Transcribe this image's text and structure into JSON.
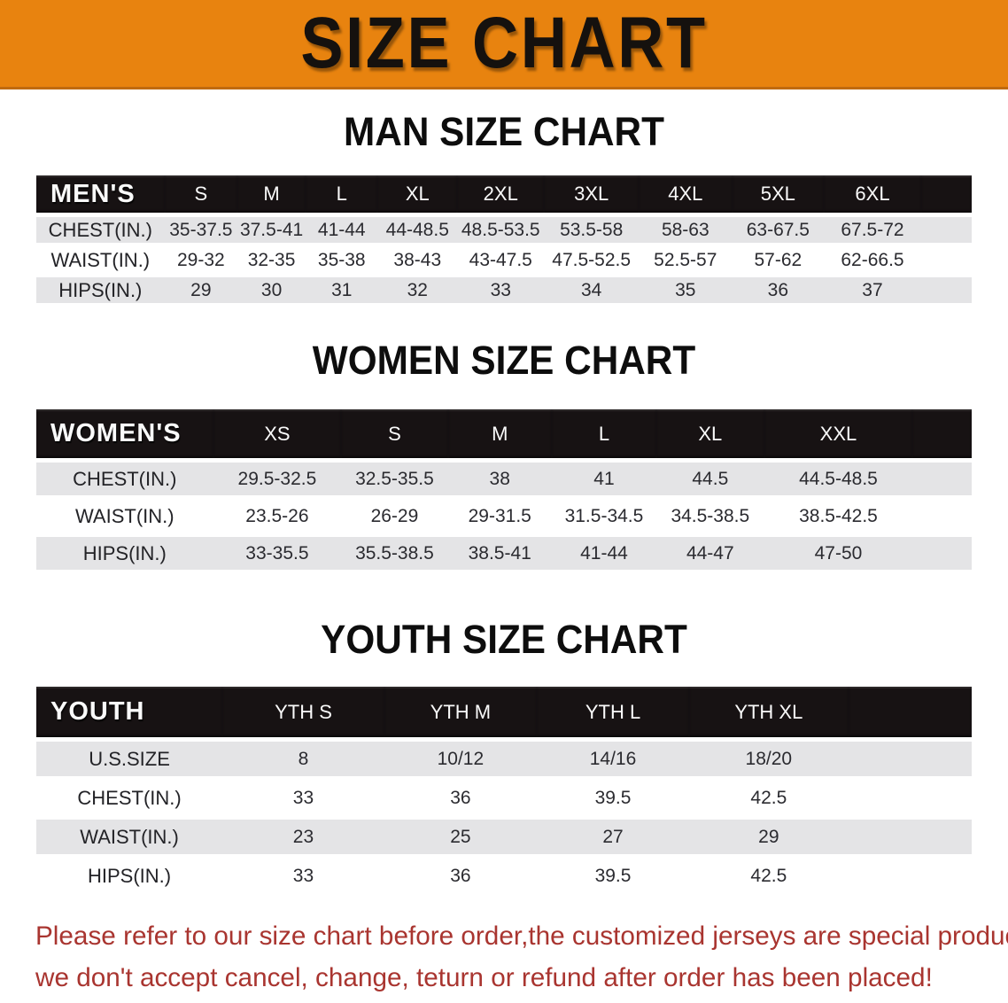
{
  "banner": {
    "title": "SIZE CHART"
  },
  "sections": [
    {
      "id": "men",
      "heading": "MAN SIZE CHART",
      "table": {
        "corner_label": "MEN'S",
        "columns": [
          "S",
          "M",
          "L",
          "XL",
          "2XL",
          "3XL",
          "4XL",
          "5XL",
          "6XL"
        ],
        "rows": [
          {
            "label": "CHEST(IN.)",
            "values": [
              "35-37.5",
              "37.5-41",
              "41-44",
              "44-48.5",
              "48.5-53.5",
              "53.5-58",
              "58-63",
              "63-67.5",
              "67.5-72"
            ]
          },
          {
            "label": "WAIST(IN.)",
            "values": [
              "29-32",
              "32-35",
              "35-38",
              "38-43",
              "43-47.5",
              "47.5-52.5",
              "52.5-57",
              "57-62",
              "62-66.5"
            ]
          },
          {
            "label": "HIPS(IN.)",
            "values": [
              "29",
              "30",
              "31",
              "32",
              "33",
              "34",
              "35",
              "36",
              "37"
            ]
          }
        ]
      }
    },
    {
      "id": "women",
      "heading": "WOMEN SIZE CHART",
      "table": {
        "corner_label": "WOMEN'S",
        "columns": [
          "XS",
          "S",
          "M",
          "L",
          "XL",
          "XXL"
        ],
        "rows": [
          {
            "label": "CHEST(IN.)",
            "values": [
              "29.5-32.5",
              "32.5-35.5",
              "38",
              "41",
              "44.5",
              "44.5-48.5"
            ]
          },
          {
            "label": "WAIST(IN.)",
            "values": [
              "23.5-26",
              "26-29",
              "29-31.5",
              "31.5-34.5",
              "34.5-38.5",
              "38.5-42.5"
            ]
          },
          {
            "label": "HIPS(IN.)",
            "values": [
              "33-35.5",
              "35.5-38.5",
              "38.5-41",
              "41-44",
              "44-47",
              "47-50"
            ]
          }
        ]
      }
    },
    {
      "id": "youth",
      "heading": "YOUTH SIZE CHART",
      "table": {
        "corner_label": "YOUTH",
        "columns": [
          "YTH S",
          "YTH M",
          "YTH L",
          "YTH XL"
        ],
        "rows": [
          {
            "label": "U.S.SIZE",
            "values": [
              "8",
              "10/12",
              "14/16",
              "18/20"
            ]
          },
          {
            "label": "CHEST(IN.)",
            "values": [
              "33",
              "36",
              "39.5",
              "42.5"
            ]
          },
          {
            "label": "WAIST(IN.)",
            "values": [
              "23",
              "25",
              "27",
              "29"
            ]
          },
          {
            "label": "HIPS(IN.)",
            "values": [
              "33",
              "36",
              "39.5",
              "42.5"
            ]
          }
        ]
      }
    }
  ],
  "disclaimer": {
    "lines": [
      "Please refer to our size chart before order,the customized jerseys are special products,",
      "we don't accept cancel, change, teturn or refund after order has been placed!"
    ]
  },
  "colors": {
    "banner_orange": "#E8830F",
    "banner_border": "#C06A10",
    "header_black": "#171213",
    "row_gray": "#E4E4E6",
    "disclaimer_red": "#A93530",
    "text_dark": "#2B2B30"
  }
}
